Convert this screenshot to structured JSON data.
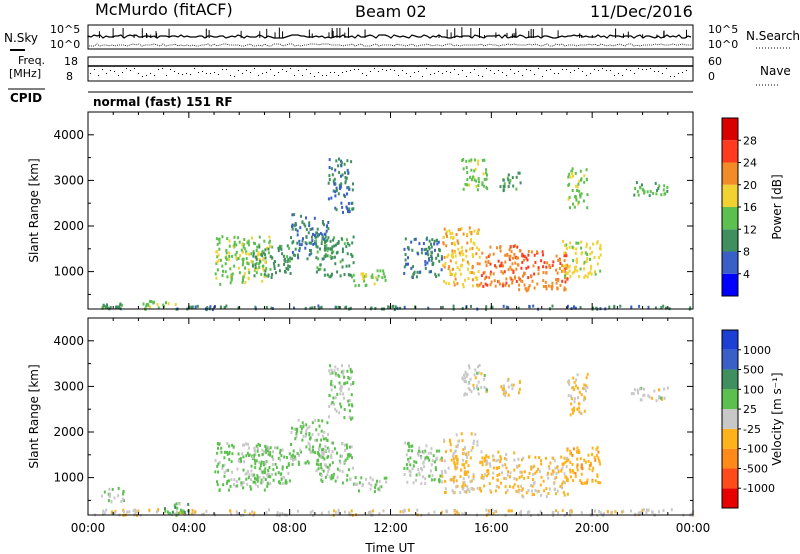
{
  "header": {
    "station": "McMurdo (fitACF)",
    "beam": "Beam 02",
    "date": "11/Dec/2016",
    "nsky_label": "N.Sky",
    "nsearch_label": "N.Search",
    "freq_label_1": "Freq.",
    "freq_label_2": "[MHz]",
    "nave_label": "Nave",
    "cpid_label": "CPID",
    "cpid_value": "normal (fast) 151 RF",
    "noise_ticks_left": [
      "10^5",
      "10^0"
    ],
    "noise_ticks_right": [
      "10^5",
      "10^0"
    ],
    "freq_ticks": [
      "18",
      "8"
    ],
    "nave_ticks": [
      "60",
      "0"
    ]
  },
  "chart_data": [
    {
      "type": "heatmap",
      "title": "",
      "xlabel": "",
      "ylabel": "Slant Range [km]",
      "xlim": [
        0,
        24
      ],
      "ylim": [
        180,
        4500
      ],
      "y_ticks": [
        "1000",
        "2000",
        "3000",
        "4000"
      ],
      "colorbar": {
        "label": "Power [dB]",
        "ticks": [
          "4",
          "8",
          "12",
          "16",
          "20",
          "24",
          "28"
        ],
        "range": [
          0,
          30
        ],
        "colors": [
          "#0000ff",
          "#3a5fc6",
          "#3f8f5f",
          "#5cc04e",
          "#f2d233",
          "#f28c28",
          "#ff3b1f",
          "#d90000"
        ]
      },
      "series": [
        {
          "name": "",
          "values": [
            [
              0.5,
              1.5,
              200,
              330,
              10
            ],
            [
              2.0,
              3.5,
              200,
              380,
              14
            ],
            [
              3.5,
              24,
              200,
              280,
              8
            ],
            [
              5.0,
              7.2,
              750,
              1800,
              14
            ],
            [
              6.5,
              8.0,
              900,
              1600,
              10
            ],
            [
              8.0,
              9.5,
              1300,
              2300,
              8
            ],
            [
              9.0,
              10.5,
              900,
              1800,
              10
            ],
            [
              10.5,
              11.8,
              700,
              1050,
              14
            ],
            [
              9.5,
              10.5,
              2300,
              3500,
              8
            ],
            [
              12.5,
              14.0,
              900,
              1800,
              8
            ],
            [
              14.0,
              15.5,
              700,
              2000,
              18
            ],
            [
              15.5,
              17.0,
              700,
              1600,
              22
            ],
            [
              17.0,
              19.0,
              600,
              1500,
              22
            ],
            [
              18.8,
              20.3,
              900,
              1700,
              16
            ],
            [
              14.8,
              15.8,
              2800,
              3500,
              14
            ],
            [
              16.3,
              17.2,
              2800,
              3200,
              10
            ],
            [
              19.0,
              19.8,
              2400,
              3300,
              14
            ],
            [
              21.5,
              23.0,
              2700,
              3000,
              12
            ]
          ]
        }
      ]
    },
    {
      "type": "heatmap",
      "title": "",
      "xlabel": "Time UT",
      "ylabel": "Slant Range [km]",
      "xlim": [
        0,
        24
      ],
      "ylim": [
        180,
        4500
      ],
      "x_ticks": [
        "00:00",
        "04:00",
        "08:00",
        "12:00",
        "16:00",
        "20:00",
        "00:00"
      ],
      "y_ticks": [
        "1000",
        "2000",
        "3000",
        "4000"
      ],
      "colorbar": {
        "label": "Velocity [m s⁻¹]",
        "ticks": [
          "1000",
          "500",
          "100",
          "25",
          "-25",
          "-100",
          "-500",
          "-1000"
        ],
        "range": [
          -1200,
          1200
        ],
        "colors": [
          "#e80000",
          "#ff4a1a",
          "#ff8a1a",
          "#ffb21a",
          "#c8c8c8",
          "#5cc04e",
          "#3f8f5f",
          "#3a5fc6",
          "#1c3fd4"
        ]
      },
      "series": [
        {
          "name": "",
          "values": [
            [
              0.0,
              24,
              200,
              330,
              -50
            ],
            [
              0.5,
              1.5,
              500,
              800,
              120
            ],
            [
              3.0,
              4.0,
              200,
              500,
              300
            ],
            [
              5.0,
              7.2,
              750,
              1800,
              150
            ],
            [
              6.5,
              8.0,
              900,
              1700,
              220
            ],
            [
              8.0,
              9.5,
              1300,
              2300,
              180
            ],
            [
              9.0,
              10.5,
              900,
              1800,
              140
            ],
            [
              10.5,
              11.8,
              700,
              1050,
              90
            ],
            [
              9.5,
              10.5,
              2300,
              3500,
              180
            ],
            [
              12.5,
              14.0,
              900,
              1800,
              120
            ],
            [
              14.0,
              15.5,
              700,
              2000,
              -150
            ],
            [
              15.5,
              17.0,
              700,
              1600,
              -200
            ],
            [
              17.0,
              19.0,
              600,
              1500,
              -180
            ],
            [
              18.8,
              20.3,
              900,
              1700,
              -300
            ],
            [
              14.8,
              15.8,
              2800,
              3500,
              0
            ],
            [
              16.3,
              17.2,
              2800,
              3200,
              -150
            ],
            [
              19.0,
              19.8,
              2400,
              3300,
              -200
            ],
            [
              21.5,
              23.0,
              2700,
              3000,
              0
            ]
          ]
        }
      ]
    }
  ]
}
